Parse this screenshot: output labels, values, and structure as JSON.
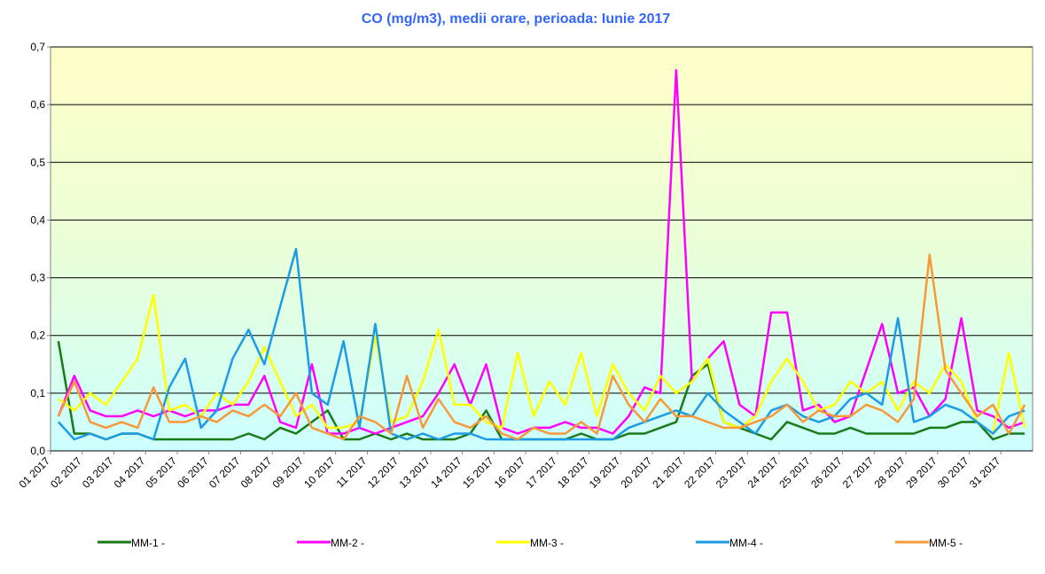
{
  "chart_data": {
    "type": "line",
    "title": "CO (mg/m3), medii orare,  perioada:  Iunie 2017",
    "categories": [
      "01 2017",
      null,
      "02 2017",
      null,
      "03 2017",
      null,
      "04 2017",
      null,
      "05 2017",
      null,
      "06 2017",
      null,
      "07 2017",
      null,
      "08 2017",
      null,
      "09 2017",
      null,
      "10 2017",
      null,
      "11 2017",
      null,
      "12 2017",
      null,
      "13 2017",
      null,
      "14 2017",
      null,
      "15 2017",
      null,
      "16 2017",
      null,
      "17 2017",
      null,
      "18 2017",
      null,
      "19 2017",
      null,
      "20 2017",
      null,
      "21 2017",
      null,
      "22 2017",
      null,
      "23 2017",
      null,
      "24 2017",
      null,
      "25 2017",
      null,
      "26 2017",
      null,
      "27 2017",
      null,
      "28 2017",
      null,
      "29 2017",
      null,
      "30 2017",
      null,
      "31 2017",
      null
    ],
    "series": [
      {
        "name": "MM-1 -",
        "color": "#1a7a1a",
        "values": [
          0.19,
          0.03,
          0.03,
          0.02,
          0.03,
          0.03,
          0.02,
          0.02,
          0.02,
          0.02,
          0.02,
          0.02,
          0.03,
          0.02,
          0.04,
          0.03,
          0.05,
          0.07,
          0.02,
          0.02,
          0.03,
          0.02,
          0.03,
          0.02,
          0.02,
          0.02,
          0.03,
          0.07,
          0.02,
          0.02,
          0.02,
          0.02,
          0.02,
          0.03,
          0.02,
          0.02,
          0.03,
          0.03,
          0.04,
          0.05,
          0.13,
          0.15,
          0.05,
          0.04,
          0.03,
          0.02,
          0.05,
          0.04,
          0.03,
          0.03,
          0.04,
          0.03,
          0.03,
          0.03,
          0.03,
          0.04,
          0.04,
          0.05,
          0.05,
          0.02,
          0.03,
          0.03
        ]
      },
      {
        "name": "MM-2 -",
        "color": "#ff00ff",
        "values": [
          0.06,
          0.13,
          0.07,
          0.06,
          0.06,
          0.07,
          0.06,
          0.07,
          0.06,
          0.07,
          0.07,
          0.08,
          0.08,
          0.13,
          0.05,
          0.04,
          0.15,
          0.03,
          0.03,
          0.04,
          0.03,
          0.04,
          0.05,
          0.06,
          0.1,
          0.15,
          0.08,
          0.15,
          0.04,
          0.03,
          0.04,
          0.04,
          0.05,
          0.04,
          0.04,
          0.03,
          0.06,
          0.11,
          0.1,
          0.66,
          0.12,
          0.16,
          0.19,
          0.08,
          0.06,
          0.24,
          0.24,
          0.07,
          0.08,
          0.05,
          0.06,
          0.14,
          0.22,
          0.1,
          0.11,
          0.06,
          0.09,
          0.23,
          0.07,
          0.06,
          0.04,
          0.05
        ]
      },
      {
        "name": "MM-3 -",
        "color": "#ffff00",
        "values": [
          0.09,
          0.07,
          0.1,
          0.08,
          0.12,
          0.16,
          0.27,
          0.07,
          0.08,
          0.06,
          0.1,
          0.08,
          0.12,
          0.18,
          0.12,
          0.06,
          0.08,
          0.04,
          0.04,
          0.05,
          0.2,
          0.05,
          0.06,
          0.12,
          0.21,
          0.08,
          0.08,
          0.05,
          0.04,
          0.17,
          0.06,
          0.12,
          0.08,
          0.17,
          0.06,
          0.15,
          0.1,
          0.07,
          0.13,
          0.1,
          0.12,
          0.16,
          0.05,
          0.04,
          0.06,
          0.12,
          0.16,
          0.12,
          0.07,
          0.08,
          0.12,
          0.1,
          0.12,
          0.07,
          0.12,
          0.1,
          0.15,
          0.12,
          0.05,
          0.03,
          0.17,
          0.04
        ]
      },
      {
        "name": "MM-4 -",
        "color": "#1e9be6",
        "values": [
          0.05,
          0.02,
          0.03,
          0.02,
          0.03,
          0.03,
          0.02,
          0.11,
          0.16,
          0.04,
          0.07,
          0.16,
          0.21,
          0.15,
          0.25,
          0.35,
          0.1,
          0.08,
          0.19,
          0.04,
          0.22,
          0.03,
          0.02,
          0.03,
          0.02,
          0.03,
          0.03,
          0.02,
          0.02,
          0.02,
          0.02,
          0.02,
          0.02,
          0.02,
          0.02,
          0.02,
          0.04,
          0.05,
          0.06,
          0.07,
          0.06,
          0.1,
          0.07,
          0.05,
          0.03,
          0.07,
          0.08,
          0.06,
          0.05,
          0.06,
          0.09,
          0.1,
          0.08,
          0.23,
          0.05,
          0.06,
          0.08,
          0.07,
          0.05,
          0.03,
          0.06,
          0.07
        ]
      },
      {
        "name": "MM-5 -",
        "color": "#f7993a",
        "values": [
          0.06,
          0.12,
          0.05,
          0.04,
          0.05,
          0.04,
          0.11,
          0.05,
          0.05,
          0.06,
          0.05,
          0.07,
          0.06,
          0.08,
          0.06,
          0.1,
          0.04,
          0.03,
          0.02,
          0.06,
          0.05,
          0.03,
          0.13,
          0.04,
          0.09,
          0.05,
          0.04,
          0.06,
          0.03,
          0.02,
          0.04,
          0.03,
          0.03,
          0.05,
          0.03,
          0.13,
          0.08,
          0.05,
          0.09,
          0.06,
          0.06,
          0.05,
          0.04,
          0.04,
          0.05,
          0.06,
          0.08,
          0.05,
          0.07,
          0.06,
          0.06,
          0.08,
          0.07,
          0.05,
          0.09,
          0.34,
          0.14,
          0.1,
          0.06,
          0.08,
          0.03,
          0.08
        ]
      }
    ],
    "ylim": [
      0,
      0.7
    ],
    "yticks": [
      {
        "value": 0,
        "label": "0,0"
      },
      {
        "value": 0.1,
        "label": "0,1"
      },
      {
        "value": 0.2,
        "label": "0,2"
      },
      {
        "value": 0.3,
        "label": "0,3"
      },
      {
        "value": 0.4,
        "label": "0,4"
      },
      {
        "value": 0.5,
        "label": "0,5"
      },
      {
        "value": 0.6,
        "label": "0,6"
      },
      {
        "value": 0.7,
        "label": "0,7"
      }
    ],
    "grid": true,
    "legend": "bottom"
  }
}
